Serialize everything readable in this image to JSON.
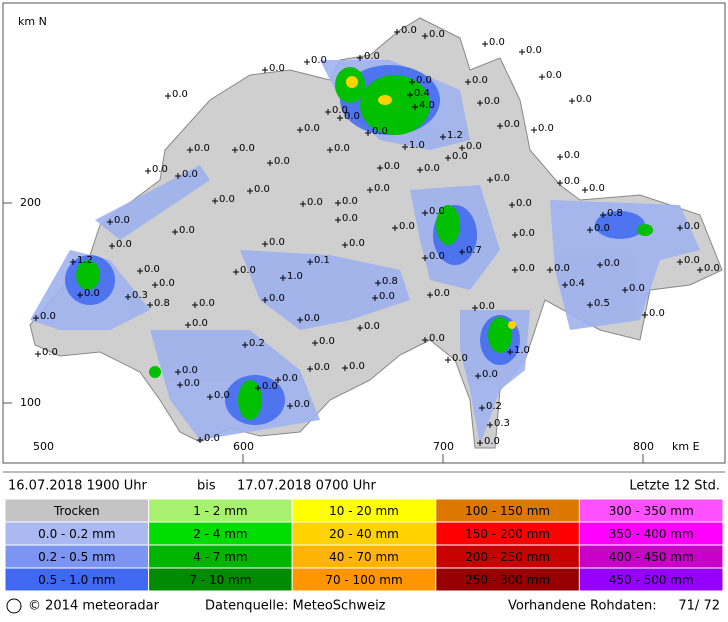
{
  "map": {
    "axis_labels": {
      "north_unit": "km N",
      "y200": "200",
      "y100": "100",
      "x500": "500",
      "x600": "600",
      "x700": "700",
      "x800": "800",
      "east_unit": "km E"
    },
    "stations": [
      "0.0",
      "0.0",
      "0.0",
      "0.0",
      "0.0",
      "0.0",
      "0.0",
      "0.0",
      "0.0",
      "0.0",
      "0.0",
      "0.4",
      "4.0",
      "0.0",
      "0.0",
      "0.0",
      "0.0",
      "0.0",
      "0.0",
      "1.2",
      "0.0",
      "0.0",
      "0.0",
      "0.0",
      "0.0",
      "1.0",
      "0.0",
      "0.0",
      "0.0",
      "0.0",
      "0.0",
      "0.0",
      "0.0",
      "0.0",
      "0.0",
      "0.0",
      "0.0",
      "0.0",
      "0.0",
      "0.0",
      "0.0",
      "0.0",
      "0.0",
      "0.0",
      "0.8",
      "0.0",
      "0.0",
      "0.0",
      "0.0",
      "0.0",
      "0.0",
      "0.0",
      "0.0",
      "0.0",
      "0.7",
      "0.0",
      "1.2",
      "0.0",
      "0.0",
      "1.0",
      "0.1",
      "0.0",
      "0.0",
      "0.0",
      "0.0",
      "0.0",
      "0.0",
      "0.0",
      "0.3",
      "0.0",
      "0.0",
      "0.8",
      "0.0",
      "0.0",
      "0.4",
      "0.0",
      "0.0",
      "0.8",
      "0.0",
      "0.0",
      "0.0",
      "0.0",
      "0.5",
      "0.0",
      "0.0",
      "0.2",
      "0.0",
      "0.0",
      "1.0",
      "0.0",
      "0.0",
      "0.0",
      "0.0",
      "0.0",
      "0.0",
      "0.0",
      "0.0",
      "0.0",
      "0.0",
      "0.0",
      "0.2",
      "0.3",
      "0.0",
      "0.0"
    ]
  },
  "header": {
    "from": "16.07.2018  1900 Uhr",
    "to_word": "bis",
    "to": "17.07.2018  0700 Uhr",
    "period": "Letzte 12 Std."
  },
  "legend": {
    "columns": [
      [
        {
          "label": "Trocken",
          "color": "#c4c4c4"
        },
        {
          "label": "0.0 - 0.2 mm",
          "color": "#aab9f2"
        },
        {
          "label": "0.2 - 0.5 mm",
          "color": "#7d95f2"
        },
        {
          "label": "0.5 - 1.0 mm",
          "color": "#4068f0"
        }
      ],
      [
        {
          "label": "1 - 2 mm",
          "color": "#a8f070"
        },
        {
          "label": "2 - 4 mm",
          "color": "#00dc00"
        },
        {
          "label": "4 - 7 mm",
          "color": "#00b400"
        },
        {
          "label": "7 - 10 mm",
          "color": "#008a00"
        }
      ],
      [
        {
          "label": "10 - 20 mm",
          "color": "#ffff00"
        },
        {
          "label": "20 - 40 mm",
          "color": "#ffd200"
        },
        {
          "label": "40 - 70 mm",
          "color": "#ffb400"
        },
        {
          "label": "70 - 100 mm",
          "color": "#ff9600"
        }
      ],
      [
        {
          "label": "100 - 150 mm",
          "color": "#dc7800"
        },
        {
          "label": "150 - 200 mm",
          "color": "#ff0000"
        },
        {
          "label": "200 - 250 mm",
          "color": "#c80000"
        },
        {
          "label": "250 - 300 mm",
          "color": "#960000"
        }
      ],
      [
        {
          "label": "300 - 350 mm",
          "color": "#ff50ff"
        },
        {
          "label": "350 - 400 mm",
          "color": "#ff00ff"
        },
        {
          "label": "400 - 450 mm",
          "color": "#c800c8"
        },
        {
          "label": "450 - 500 mm",
          "color": "#9600ff"
        }
      ]
    ]
  },
  "footer": {
    "copyright": "© 2014  meteoradar",
    "source": "Datenquelle: MeteoSchweiz",
    "raw_label": "Vorhandene Rohdaten:",
    "raw_value": "71/ 72"
  }
}
